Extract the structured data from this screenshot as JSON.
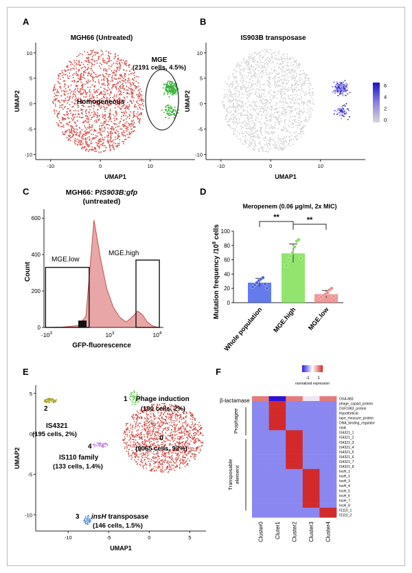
{
  "panels": {
    "A": {
      "letter": "A",
      "title": "MGH66 (Untreated)",
      "xlabel": "UMAP1",
      "ylabel": "UMAP2",
      "xticks": [
        "-10",
        "0",
        "10"
      ],
      "yticks": [
        "10",
        "5",
        "0",
        "-5",
        "-10"
      ],
      "label_main": "Homogeneous",
      "label_mge_1": "MGE",
      "label_mge_2": "(2191 cells, 4.5%)"
    },
    "B": {
      "letter": "B",
      "title": "IS903B transposase",
      "xlabel": "UMAP1",
      "ylabel": "UMAP2",
      "xticks": [
        "-10",
        "0",
        "10"
      ],
      "yticks": [
        "10",
        "5",
        "0",
        "-5",
        "-10"
      ],
      "colorbar_ticks": [
        "6",
        "4",
        "2",
        "0"
      ]
    },
    "C": {
      "letter": "C",
      "title_1": "MGH66: P",
      "title_1b": "IS903B:gfp",
      "title_2": "(untreated)",
      "xlabel": "GFP-fluorescence",
      "ylabel": "Count",
      "yticks": [
        "600",
        "400",
        "200",
        "0"
      ],
      "gate_low": "MGE.low",
      "gate_high": "MGE.high",
      "xtick_1": "-10",
      "xtick_2": "10",
      "xtick_3": "10",
      "exp_1": "3",
      "exp_2": "3",
      "exp_3": "4"
    },
    "D": {
      "letter": "D",
      "title": "Meropenem (0.06 μg/ml, 2x MIC)",
      "ylabel_main": "Mutation frequency /10",
      "ylabel_exp": "8",
      "ylabel_tail": " cells",
      "yticks": [
        "100",
        "80",
        "60",
        "40",
        "20",
        "0"
      ],
      "sig_1": "**",
      "sig_2": "**"
    },
    "E": {
      "letter": "E",
      "xlabel": "UMAP1",
      "ylabel": "UMAP2",
      "xticks": [
        "-10",
        "-5",
        "0",
        "5"
      ],
      "yticks": [
        "5",
        "0",
        "-5",
        "-10"
      ],
      "cluster0_id": "0",
      "cluster0_text": "(9065 cells, 93%)",
      "cluster1_id": "1",
      "cluster1_name": "Phage induction",
      "cluster1_text": "(190 cells, 2%)",
      "cluster2_id": "2",
      "cluster2_name": "IS4321",
      "cluster2_text": "(195 cells, 2%)",
      "cluster3_id": "3",
      "cluster3_name_it": "insH",
      "cluster3_name": " transposase",
      "cluster3_text": "(146 cells, 1.5%)",
      "cluster4_id": "4",
      "cluster4_name": "IS110 family",
      "cluster4_text": "(133 cells, 1.4%)"
    },
    "F": {
      "letter": "F",
      "legend_label": "normalized expression",
      "legend_ticks": [
        "-1",
        "1"
      ],
      "group_beta": "β-lactamase",
      "group_prophage": "Prophagee",
      "group_te_1": "Transposable",
      "group_te_2": "element",
      "genes": [
        "OXA-883",
        "phage_capsid_protein",
        "DUF1983_protein",
        "Hypothetical",
        "tape_measure_protein",
        "DNA_binding_regulator",
        "ninA",
        "IS4321_1",
        "IS4321_2",
        "IS4321_3",
        "IS4321_4",
        "IS4321_5",
        "IS4321_6",
        "IS4321_7",
        "IS4321_8",
        "InsH_1",
        "InsH_2",
        "InsH_3",
        "InsH_4",
        "InsH_5",
        "InsH_6",
        "InsH_7",
        "InsH_8",
        "IS110_1",
        "IS110_2"
      ],
      "clusters": [
        "Cluster0",
        "Cluter1",
        "Cluster2",
        "Cluster3",
        "Cluster4"
      ]
    }
  },
  "chart_data": [
    {
      "type": "scatter",
      "panel": "A",
      "title": "MGH66 (Untreated)",
      "xlabel": "UMAP1",
      "ylabel": "UMAP2",
      "xlim": [
        -13,
        19
      ],
      "ylim": [
        -11,
        12
      ],
      "series": [
        {
          "name": "Homogeneous",
          "color": "#d9534f",
          "center": [
            -0.5,
            0.5
          ],
          "spread": [
            8.5,
            9.5
          ]
        },
        {
          "name": "MGE (2191 cells, 4.5%)",
          "color": "#3cb43c",
          "center": [
            14.5,
            1.5
          ],
          "spread": [
            1.8,
            3.5
          ]
        }
      ]
    },
    {
      "type": "scatter",
      "panel": "B",
      "title": "IS903B transposase",
      "xlabel": "UMAP1",
      "ylabel": "UMAP2",
      "xlim": [
        -13,
        19
      ],
      "ylim": [
        -11,
        12
      ],
      "colorbar": {
        "min": 0,
        "max": 6,
        "low_color": "#d8d8d8",
        "high_color": "#1a12c8"
      }
    },
    {
      "type": "area",
      "panel": "C",
      "title": "MGH66: PIS903B:gfp (untreated)",
      "xlabel": "GFP-fluorescence",
      "ylabel": "Count",
      "ylim": [
        0,
        650
      ],
      "x_log": [
        -3,
        -2,
        -1,
        -0.5,
        0,
        0.4,
        0.8,
        1.2,
        1.6,
        2,
        2.4,
        2.7,
        3,
        3.3,
        3.6,
        3.9,
        4.2
      ],
      "y": [
        0,
        2,
        10,
        60,
        590,
        380,
        210,
        110,
        55,
        30,
        60,
        90,
        70,
        30,
        10,
        2,
        0
      ],
      "gates": [
        {
          "name": "MGE.low",
          "range": "-10^3 to 0",
          "height": 330
        },
        {
          "name": "MGE.high",
          "range": "~10^2.6 to 10^4",
          "height": 370
        }
      ]
    },
    {
      "type": "bar",
      "panel": "D",
      "title": "Meropenem (0.06 μg/ml, 2x MIC)",
      "ylabel": "Mutation frequency /10^8 cells",
      "ylim": [
        0,
        100
      ],
      "categories": [
        "Whole population",
        "MGE.high",
        "MGE.low"
      ],
      "values": [
        28,
        69,
        12
      ],
      "errors": [
        6,
        13,
        5
      ],
      "colors": [
        "#4a63e8",
        "#7ee055",
        "#e98a88"
      ],
      "points": [
        [
          22,
          25,
          28,
          31,
          33,
          35,
          26,
          20
        ],
        [
          52,
          60,
          65,
          70,
          78,
          86,
          88,
          62
        ],
        [
          6,
          8,
          10,
          12,
          14,
          18,
          20,
          9
        ]
      ],
      "significance": [
        "**",
        "**"
      ]
    },
    {
      "type": "scatter",
      "panel": "E",
      "xlabel": "UMAP1",
      "ylabel": "UMAP2",
      "xlim": [
        -14,
        7
      ],
      "ylim": [
        -12,
        6
      ],
      "series": [
        {
          "name": "0",
          "cells": 9065,
          "percent": 93,
          "color": "#cf4a43"
        },
        {
          "name": "1 Phage induction",
          "cells": 190,
          "percent": 2,
          "color": "#6ccb5e"
        },
        {
          "name": "2 IS4321",
          "cells": 195,
          "percent": 2,
          "color": "#a6a21c"
        },
        {
          "name": "3 insH transposase",
          "cells": 146,
          "percent": 1.5,
          "color": "#5a93e0"
        },
        {
          "name": "4 IS110 family",
          "cells": 133,
          "percent": 1.4,
          "color": "#c48be4"
        }
      ]
    },
    {
      "type": "heatmap",
      "panel": "F",
      "legend_range": [
        -1,
        1
      ],
      "rows": [
        "OXA-883",
        "phage_capsid_protein",
        "DUF1983_protein",
        "Hypothetical",
        "tape_measure_protein",
        "DNA_binding_regulator",
        "ninA",
        "IS4321_1",
        "IS4321_2",
        "IS4321_3",
        "IS4321_4",
        "IS4321_5",
        "IS4321_6",
        "IS4321_7",
        "IS4321_8",
        "InsH_1",
        "InsH_2",
        "InsH_3",
        "InsH_4",
        "InsH_5",
        "InsH_6",
        "InsH_7",
        "InsH_8",
        "IS110_1",
        "IS110_2"
      ],
      "columns": [
        "Cluster0",
        "Cluter1",
        "Cluster2",
        "Cluster3",
        "Cluster4"
      ],
      "high_cells": {
        "OXA-883": [
          0.4,
          -1,
          0.4,
          0.1,
          0.7
        ],
        "Prophage": "Cluter1",
        "IS4321": "Cluster2",
        "InsH": "Cluster3",
        "IS110": "Cluster4"
      }
    }
  ]
}
